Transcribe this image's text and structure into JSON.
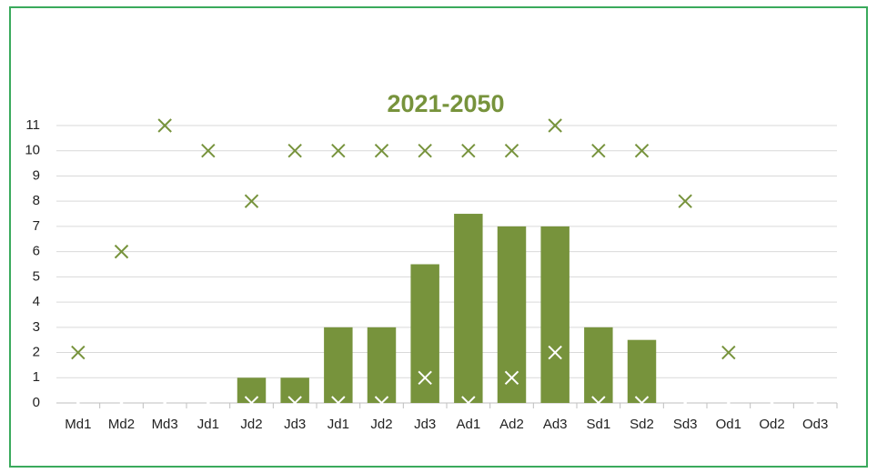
{
  "chart_data": {
    "type": "combo",
    "title": "2021-2050",
    "categories": [
      "Md1",
      "Md2",
      "Md3",
      "Jd1",
      "Jd2",
      "Jd3",
      "Jd1",
      "Jd2",
      "Jd3",
      "Ad1",
      "Ad2",
      "Ad3",
      "Sd1",
      "Sd2",
      "Sd3",
      "Od1",
      "Od2",
      "Od3"
    ],
    "series": [
      {
        "type": "bar",
        "color": "#77933c",
        "values": [
          0,
          0,
          0,
          0,
          1,
          1,
          3,
          3,
          5.5,
          7.5,
          7,
          7,
          3,
          2.5,
          0,
          0,
          0,
          0
        ]
      },
      {
        "type": "scatter",
        "marker": "x",
        "color": "#77933c",
        "values": [
          2,
          6,
          11,
          10,
          8,
          10,
          10,
          10,
          10,
          10,
          10,
          11,
          10,
          10,
          8,
          2,
          null,
          null
        ]
      },
      {
        "type": "scatter",
        "marker": "x",
        "color": "#ffffff",
        "values": [
          0,
          0,
          0,
          0,
          0,
          0,
          0,
          0,
          1,
          0,
          1,
          2,
          0,
          0,
          0,
          0,
          0,
          0
        ]
      }
    ],
    "ylim": [
      0,
      11
    ],
    "yticks": [
      0,
      1,
      2,
      3,
      4,
      5,
      6,
      7,
      8,
      9,
      10,
      11
    ],
    "grid": true
  }
}
